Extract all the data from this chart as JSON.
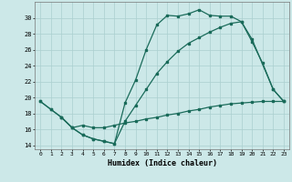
{
  "xlabel": "Humidex (Indice chaleur)",
  "bg_color": "#cce8e8",
  "grid_color": "#aacfcf",
  "line_color": "#1a6b5a",
  "xlim": [
    -0.5,
    23.5
  ],
  "ylim": [
    13.5,
    32
  ],
  "yticks": [
    14,
    16,
    18,
    20,
    22,
    24,
    26,
    28,
    30
  ],
  "xticks": [
    0,
    1,
    2,
    3,
    4,
    5,
    6,
    7,
    8,
    9,
    10,
    11,
    12,
    13,
    14,
    15,
    16,
    17,
    18,
    19,
    20,
    21,
    22,
    23
  ],
  "line1_x": [
    0,
    1,
    2,
    3,
    4,
    5,
    6,
    7,
    8,
    9,
    10,
    11,
    12,
    13,
    14,
    15,
    16,
    17,
    18,
    19,
    20,
    21,
    22,
    23
  ],
  "line1_y": [
    19.5,
    18.5,
    17.5,
    16.2,
    15.3,
    14.8,
    14.5,
    14.2,
    19.3,
    22.2,
    26.0,
    29.1,
    30.3,
    30.2,
    30.5,
    31.0,
    30.3,
    30.2,
    30.2,
    29.5,
    27.0,
    24.3,
    21.0,
    19.5
  ],
  "line2_x": [
    0,
    1,
    2,
    3,
    4,
    5,
    6,
    7,
    8,
    9,
    10,
    11,
    12,
    13,
    14,
    15,
    16,
    17,
    18,
    19,
    20,
    22,
    23
  ],
  "line2_y": [
    19.5,
    18.5,
    17.5,
    16.2,
    15.3,
    14.8,
    14.5,
    14.2,
    17.0,
    19.0,
    21.0,
    23.0,
    24.5,
    25.8,
    26.8,
    27.5,
    28.2,
    28.8,
    29.3,
    29.5,
    27.3,
    21.0,
    19.5
  ],
  "line3_x": [
    2,
    3,
    4,
    5,
    6,
    7,
    8,
    9,
    10,
    11,
    12,
    13,
    14,
    15,
    16,
    17,
    18,
    19,
    20,
    21,
    22,
    23
  ],
  "line3_y": [
    17.5,
    16.2,
    16.5,
    16.2,
    16.2,
    16.5,
    16.8,
    17.0,
    17.3,
    17.5,
    17.8,
    18.0,
    18.3,
    18.5,
    18.8,
    19.0,
    19.2,
    19.3,
    19.4,
    19.5,
    19.5,
    19.5
  ]
}
